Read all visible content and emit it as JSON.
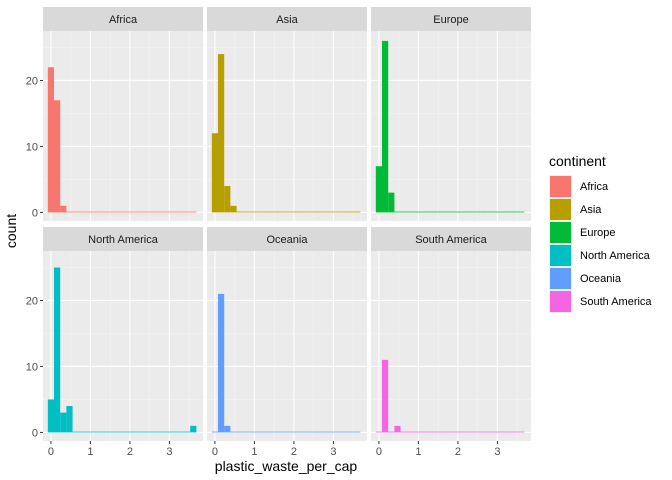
{
  "chart_data": {
    "type": "bar",
    "subtype": "faceted-histogram",
    "xlabel": "plastic_waste_per_cap",
    "ylabel": "count",
    "xlim": [
      -0.2,
      3.85
    ],
    "ylim": [
      -1.3,
      27.5
    ],
    "x_ticks": [
      0,
      1,
      2,
      3
    ],
    "y_ticks": [
      0,
      10,
      20
    ],
    "bin_width": 0.1567,
    "bin_start": -0.078,
    "num_bins": 24,
    "grid": true,
    "background": "#EBEBEB",
    "strip_background": "#D9D9D9",
    "legend": {
      "title": "continent",
      "position": "right"
    },
    "panels": [
      {
        "name": "Africa",
        "color": "#F8766D",
        "counts": [
          22,
          17,
          1,
          0,
          0,
          0,
          0,
          0,
          0,
          0,
          0,
          0,
          0,
          0,
          0,
          0,
          0,
          0,
          0,
          0,
          0,
          0,
          0,
          0
        ]
      },
      {
        "name": "Asia",
        "color": "#B79F00",
        "counts": [
          12,
          24,
          4,
          1,
          0,
          0,
          0,
          0,
          0,
          0,
          0,
          0,
          0,
          0,
          0,
          0,
          0,
          0,
          0,
          0,
          0,
          0,
          0,
          0
        ]
      },
      {
        "name": "Europe",
        "color": "#00BA38",
        "counts": [
          7,
          26,
          3,
          0,
          0,
          0,
          0,
          0,
          0,
          0,
          0,
          0,
          0,
          0,
          0,
          0,
          0,
          0,
          0,
          0,
          0,
          0,
          0,
          0
        ]
      },
      {
        "name": "North America",
        "color": "#00BFC4",
        "counts": [
          5,
          25,
          3,
          4,
          0,
          0,
          0,
          0,
          0,
          0,
          0,
          0,
          0,
          0,
          0,
          0,
          0,
          0,
          0,
          0,
          0,
          0,
          0,
          1
        ]
      },
      {
        "name": "Oceania",
        "color": "#619CFF",
        "counts": [
          0,
          21,
          1,
          0,
          0,
          0,
          0,
          0,
          0,
          0,
          0,
          0,
          0,
          0,
          0,
          0,
          0,
          0,
          0,
          0,
          0,
          0,
          0,
          0
        ]
      },
      {
        "name": "South America",
        "color": "#F564E3",
        "counts": [
          0,
          11,
          0,
          1,
          0,
          0,
          0,
          0,
          0,
          0,
          0,
          0,
          0,
          0,
          0,
          0,
          0,
          0,
          0,
          0,
          0,
          0,
          0,
          0
        ]
      }
    ]
  }
}
